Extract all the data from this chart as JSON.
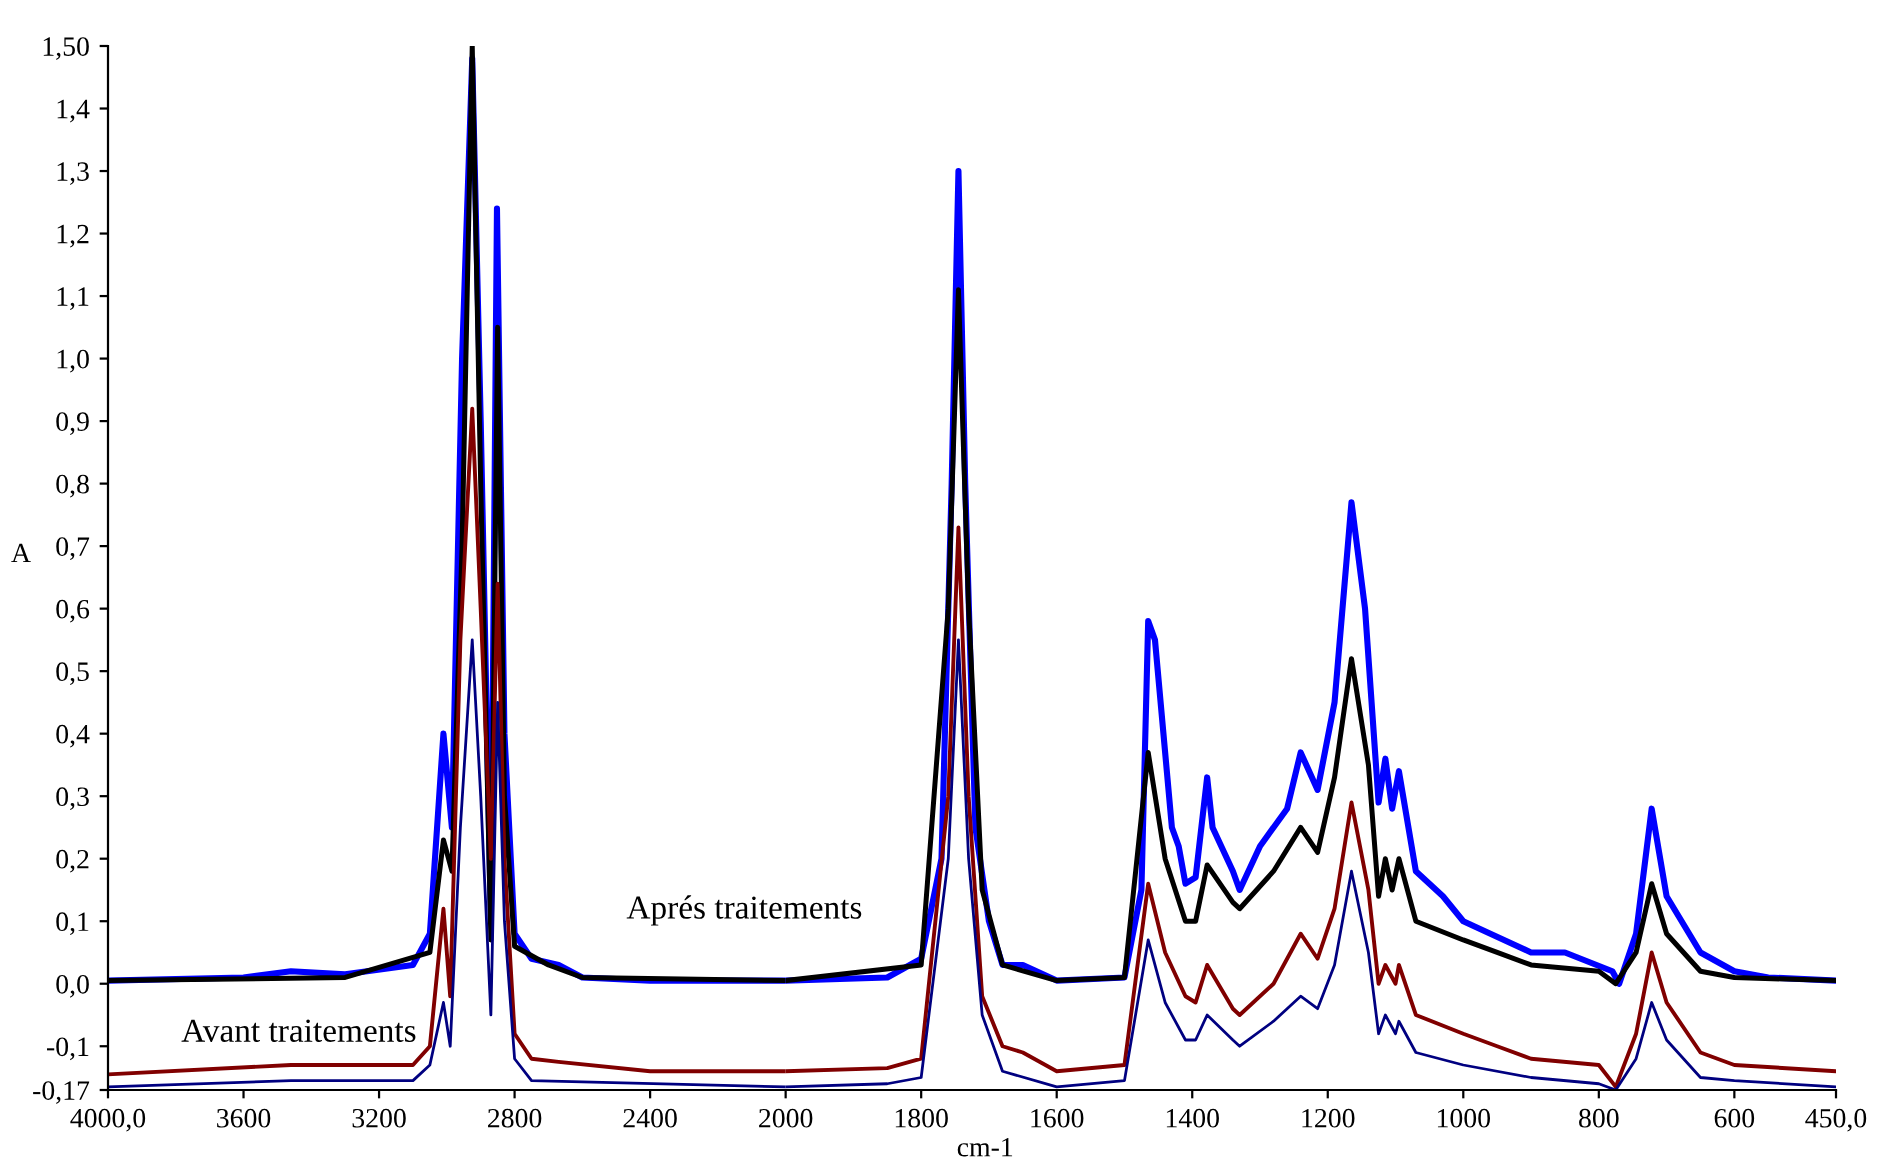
{
  "chart_data": [
    {
      "type": "line",
      "ylabel": "A",
      "xlim": [
        4000,
        2000
      ],
      "ylim": [
        -0.17,
        1.5
      ],
      "xticks": [
        {
          "value": 4000,
          "label": "4000,0"
        },
        3600,
        3200,
        2800,
        2400
      ],
      "yticks": [
        {
          "value": -0.17,
          "label": "-0,17"
        },
        {
          "value": -0.1,
          "label": "-0,1"
        },
        {
          "value": 0,
          "label": "0,0"
        },
        {
          "value": 0.1,
          "label": "0,1"
        },
        {
          "value": 0.2,
          "label": "0,2"
        },
        {
          "value": 0.3,
          "label": "0,3"
        },
        {
          "value": 0.4,
          "label": "0,4"
        },
        {
          "value": 0.5,
          "label": "0,5"
        },
        {
          "value": 0.6,
          "label": "0,6"
        },
        {
          "value": 0.7,
          "label": "0,7"
        },
        {
          "value": 0.8,
          "label": "0,8"
        },
        {
          "value": 0.9,
          "label": "0,9"
        },
        {
          "value": 1.0,
          "label": "1,0"
        },
        {
          "value": 1.1,
          "label": "1,1"
        },
        {
          "value": 1.2,
          "label": "1,2"
        },
        {
          "value": 1.3,
          "label": "1,3"
        },
        {
          "value": 1.4,
          "label": "1,4"
        },
        {
          "value": 1.5,
          "label": "1,50"
        }
      ],
      "grid": false,
      "legend": false,
      "marker": "none",
      "line_style": "solid",
      "annotations": [
        "Aprés traitements",
        "Avant traitements"
      ],
      "series": [
        {
          "color": "#0000ff",
          "x": [
            4000,
            3600,
            3460,
            3300,
            3100,
            3050,
            3010,
            2985,
            2955,
            2925,
            2900,
            2870,
            2852,
            2830,
            2800,
            2750,
            2670,
            2600,
            2400,
            2000
          ],
          "values": [
            0.005,
            0.01,
            0.02,
            0.015,
            0.03,
            0.08,
            0.4,
            0.25,
            1.0,
            1.48,
            0.9,
            0.1,
            1.24,
            0.4,
            0.08,
            0.04,
            0.03,
            0.01,
            0.005,
            0.005
          ]
        },
        {
          "color": "#000000",
          "x": [
            4000,
            3300,
            3050,
            3010,
            2985,
            2955,
            2925,
            2900,
            2870,
            2850,
            2830,
            2800,
            2700,
            2600,
            2000
          ],
          "values": [
            0.005,
            0.01,
            0.05,
            0.23,
            0.18,
            0.7,
            1.5,
            0.8,
            0.07,
            1.05,
            0.3,
            0.06,
            0.03,
            0.01,
            0.005
          ]
        },
        {
          "color": "#800000",
          "x": [
            4000,
            3460,
            3100,
            3050,
            3010,
            2990,
            2960,
            2925,
            2900,
            2870,
            2850,
            2830,
            2800,
            2750,
            2670,
            2400,
            2000
          ],
          "values": [
            -0.145,
            -0.13,
            -0.13,
            -0.1,
            0.12,
            -0.02,
            0.55,
            0.92,
            0.6,
            0.2,
            0.64,
            0.2,
            -0.08,
            -0.12,
            -0.125,
            -0.14,
            -0.14
          ]
        },
        {
          "color": "#000080",
          "x": [
            4000,
            3460,
            3100,
            3050,
            3010,
            2990,
            2960,
            2925,
            2900,
            2870,
            2850,
            2830,
            2800,
            2750,
            2000
          ],
          "values": [
            -0.165,
            -0.155,
            -0.155,
            -0.13,
            -0.03,
            -0.1,
            0.25,
            0.55,
            0.3,
            -0.05,
            0.45,
            0.1,
            -0.12,
            -0.155,
            -0.165
          ]
        }
      ]
    },
    {
      "type": "line",
      "xlabel": "cm-1",
      "xlim": [
        2000,
        450
      ],
      "ylim": [
        -0.17,
        1.5
      ],
      "tick_labels": "x",
      "xticks": [
        2000,
        1800,
        1600,
        1400,
        1200,
        1000,
        800,
        600,
        {
          "value": 450,
          "label": "450,0"
        }
      ],
      "grid": false,
      "legend": false,
      "marker": "none",
      "line_style": "solid",
      "series": [
        {
          "color": "#0000ff",
          "x": [
            2000,
            1850,
            1800,
            1770,
            1755,
            1745,
            1735,
            1720,
            1700,
            1680,
            1650,
            1600,
            1500,
            1475,
            1465,
            1455,
            1430,
            1420,
            1410,
            1395,
            1378,
            1370,
            1340,
            1330,
            1300,
            1260,
            1240,
            1215,
            1190,
            1165,
            1145,
            1125,
            1115,
            1105,
            1095,
            1070,
            1030,
            1000,
            960,
            900,
            850,
            780,
            770,
            745,
            722,
            700,
            650,
            600,
            550,
            450
          ],
          "values": [
            0.005,
            0.01,
            0.04,
            0.2,
            0.8,
            1.3,
            0.8,
            0.25,
            0.1,
            0.03,
            0.03,
            0.005,
            0.01,
            0.15,
            0.58,
            0.55,
            0.25,
            0.22,
            0.16,
            0.17,
            0.33,
            0.25,
            0.18,
            0.15,
            0.22,
            0.28,
            0.37,
            0.31,
            0.45,
            0.77,
            0.6,
            0.29,
            0.36,
            0.28,
            0.34,
            0.18,
            0.14,
            0.1,
            0.08,
            0.05,
            0.05,
            0.02,
            0.0,
            0.08,
            0.28,
            0.14,
            0.05,
            0.02,
            0.01,
            0.005
          ]
        },
        {
          "color": "#000000",
          "x": [
            2000,
            1800,
            1760,
            1745,
            1730,
            1710,
            1680,
            1600,
            1500,
            1465,
            1440,
            1410,
            1395,
            1378,
            1340,
            1330,
            1280,
            1240,
            1215,
            1190,
            1165,
            1140,
            1125,
            1115,
            1105,
            1095,
            1070,
            1000,
            950,
            900,
            800,
            775,
            745,
            722,
            700,
            650,
            600,
            450
          ],
          "values": [
            0.005,
            0.03,
            0.6,
            1.11,
            0.6,
            0.15,
            0.03,
            0.005,
            0.01,
            0.37,
            0.2,
            0.1,
            0.1,
            0.19,
            0.13,
            0.12,
            0.18,
            0.25,
            0.21,
            0.33,
            0.52,
            0.35,
            0.14,
            0.2,
            0.15,
            0.2,
            0.1,
            0.07,
            0.05,
            0.03,
            0.02,
            0.0,
            0.05,
            0.16,
            0.08,
            0.02,
            0.01,
            0.005
          ]
        },
        {
          "color": "#800000",
          "x": [
            2000,
            1850,
            1800,
            1760,
            1745,
            1730,
            1710,
            1680,
            1650,
            1600,
            1500,
            1465,
            1440,
            1410,
            1395,
            1378,
            1340,
            1330,
            1280,
            1240,
            1215,
            1190,
            1165,
            1140,
            1125,
            1115,
            1100,
            1095,
            1070,
            1000,
            950,
            900,
            800,
            775,
            745,
            722,
            700,
            650,
            600,
            450
          ],
          "values": [
            -0.14,
            -0.135,
            -0.12,
            0.3,
            0.73,
            0.3,
            -0.02,
            -0.1,
            -0.11,
            -0.14,
            -0.13,
            0.16,
            0.05,
            -0.02,
            -0.03,
            0.03,
            -0.04,
            -0.05,
            0.0,
            0.08,
            0.04,
            0.12,
            0.29,
            0.15,
            0.0,
            0.03,
            0.0,
            0.03,
            -0.05,
            -0.08,
            -0.1,
            -0.12,
            -0.13,
            -0.165,
            -0.08,
            0.05,
            -0.03,
            -0.11,
            -0.13,
            -0.14
          ]
        },
        {
          "color": "#000080",
          "x": [
            2000,
            1850,
            1800,
            1760,
            1745,
            1730,
            1710,
            1680,
            1600,
            1500,
            1465,
            1440,
            1410,
            1395,
            1378,
            1340,
            1330,
            1280,
            1240,
            1215,
            1190,
            1165,
            1140,
            1125,
            1115,
            1100,
            1095,
            1070,
            1000,
            900,
            800,
            775,
            745,
            722,
            700,
            650,
            600,
            450
          ],
          "values": [
            -0.165,
            -0.16,
            -0.15,
            0.2,
            0.55,
            0.2,
            -0.05,
            -0.14,
            -0.165,
            -0.155,
            0.07,
            -0.03,
            -0.09,
            -0.09,
            -0.05,
            -0.09,
            -0.1,
            -0.06,
            -0.02,
            -0.04,
            0.03,
            0.18,
            0.05,
            -0.08,
            -0.05,
            -0.08,
            -0.06,
            -0.11,
            -0.13,
            -0.15,
            -0.16,
            -0.17,
            -0.12,
            -0.03,
            -0.09,
            -0.15,
            -0.155,
            -0.165
          ]
        }
      ]
    }
  ]
}
